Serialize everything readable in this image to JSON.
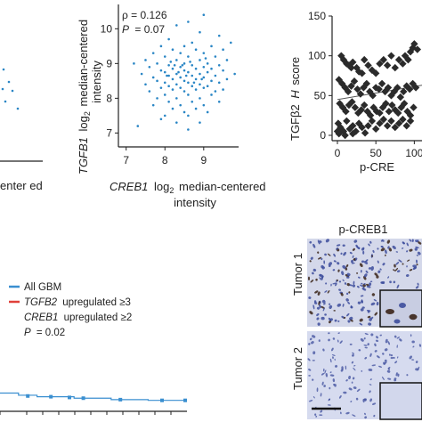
{
  "colors": {
    "point_blue": "#2a86c5",
    "km_blue": "#3a8fd0",
    "km_red": "#e0403a",
    "diamond": "#2b2b2b",
    "ihc_bg": "#cfd5ea",
    "ihc_nuclei": "#3d4e9c"
  },
  "left_panel": {
    "xlabel_tail": "enter ed"
  },
  "chart_data": [
    {
      "type": "scatter",
      "panel": "scatter-creb1-tgfb1",
      "x_label_gene": "CREB1",
      "x_label_suffix": "log",
      "x_label_sub": "2",
      "x_label_rest": "median-centered",
      "x_label_line2": "intensity",
      "y_label_gene": "TGFB1",
      "y_label_suffix": "log",
      "y_label_sub": "2",
      "y_label_rest": "median-centered",
      "y_label_line2": "intensity",
      "x_ticks": [
        "7",
        "8",
        "9"
      ],
      "y_ticks": [
        "7",
        "8",
        "9",
        "10"
      ],
      "xlim": [
        6.8,
        9.9
      ],
      "ylim": [
        6.6,
        10.7
      ],
      "rho_label": "ρ = 0.126",
      "p_label_letter": "P",
      "p_label_value": "= 0.07",
      "points": [
        [
          8.6,
          10.2
        ],
        [
          9.0,
          10.4
        ],
        [
          8.3,
          10.1
        ],
        [
          8.9,
          9.9
        ],
        [
          9.4,
          9.8
        ],
        [
          8.1,
          9.7
        ],
        [
          8.7,
          9.6
        ],
        [
          7.9,
          9.5
        ],
        [
          8.5,
          9.5
        ],
        [
          9.2,
          9.5
        ],
        [
          8.2,
          9.4
        ],
        [
          8.8,
          9.4
        ],
        [
          9.5,
          9.4
        ],
        [
          7.7,
          9.3
        ],
        [
          8.4,
          9.3
        ],
        [
          9.0,
          9.3
        ],
        [
          8.0,
          9.2
        ],
        [
          8.6,
          9.2
        ],
        [
          9.3,
          9.2
        ],
        [
          7.5,
          9.1
        ],
        [
          8.3,
          9.1
        ],
        [
          8.9,
          9.1
        ],
        [
          9.6,
          9.1
        ],
        [
          7.8,
          9.0
        ],
        [
          8.5,
          9.0
        ],
        [
          9.1,
          9.0
        ],
        [
          8.1,
          8.95
        ],
        [
          8.7,
          8.95
        ],
        [
          9.4,
          8.95
        ],
        [
          7.6,
          8.9
        ],
        [
          8.4,
          8.9
        ],
        [
          9.0,
          8.9
        ],
        [
          8.2,
          8.85
        ],
        [
          8.8,
          8.85
        ],
        [
          9.2,
          8.85
        ],
        [
          7.9,
          8.8
        ],
        [
          8.5,
          8.8
        ],
        [
          9.5,
          8.8
        ],
        [
          8.0,
          8.75
        ],
        [
          8.6,
          8.75
        ],
        [
          9.1,
          8.75
        ],
        [
          7.4,
          8.7
        ],
        [
          8.3,
          8.7
        ],
        [
          8.9,
          8.7
        ],
        [
          8.1,
          8.65
        ],
        [
          8.7,
          8.65
        ],
        [
          9.3,
          8.65
        ],
        [
          7.7,
          8.6
        ],
        [
          8.4,
          8.6
        ],
        [
          9.0,
          8.6
        ],
        [
          8.2,
          8.55
        ],
        [
          8.8,
          8.55
        ],
        [
          9.6,
          8.55
        ],
        [
          7.8,
          8.5
        ],
        [
          8.5,
          8.5
        ],
        [
          9.2,
          8.5
        ],
        [
          8.0,
          8.45
        ],
        [
          8.6,
          8.45
        ],
        [
          9.4,
          8.45
        ],
        [
          7.5,
          8.4
        ],
        [
          8.3,
          8.4
        ],
        [
          8.9,
          8.4
        ],
        [
          8.1,
          8.35
        ],
        [
          8.7,
          8.35
        ],
        [
          9.1,
          8.35
        ],
        [
          7.9,
          8.3
        ],
        [
          8.4,
          8.3
        ],
        [
          9.0,
          8.3
        ],
        [
          8.2,
          8.25
        ],
        [
          8.8,
          8.25
        ],
        [
          9.5,
          8.25
        ],
        [
          7.6,
          8.2
        ],
        [
          8.5,
          8.2
        ],
        [
          9.3,
          8.2
        ],
        [
          8.0,
          8.1
        ],
        [
          8.6,
          8.1
        ],
        [
          9.2,
          8.1
        ],
        [
          7.8,
          8.0
        ],
        [
          8.3,
          8.0
        ],
        [
          8.9,
          8.0
        ],
        [
          8.1,
          7.9
        ],
        [
          8.7,
          7.9
        ],
        [
          9.4,
          7.9
        ],
        [
          7.7,
          7.8
        ],
        [
          8.4,
          7.8
        ],
        [
          9.0,
          7.8
        ],
        [
          8.2,
          7.7
        ],
        [
          8.8,
          7.7
        ],
        [
          8.5,
          7.6
        ],
        [
          9.1,
          7.6
        ],
        [
          8.0,
          7.5
        ],
        [
          8.6,
          7.5
        ],
        [
          7.9,
          7.4
        ],
        [
          8.3,
          7.3
        ],
        [
          8.9,
          7.3
        ],
        [
          8.6,
          7.1
        ],
        [
          7.3,
          7.2
        ],
        [
          9.7,
          9.6
        ],
        [
          7.2,
          9.0
        ],
        [
          9.8,
          8.7
        ],
        [
          8.45,
          8.95
        ],
        [
          8.55,
          8.65
        ],
        [
          8.65,
          9.05
        ],
        [
          8.35,
          8.75
        ],
        [
          8.75,
          8.45
        ],
        [
          8.25,
          8.95
        ],
        [
          8.95,
          8.55
        ],
        [
          8.05,
          8.65
        ],
        [
          9.05,
          9.15
        ],
        [
          8.15,
          9.05
        ]
      ]
    },
    {
      "type": "scatter",
      "panel": "scatter-hscore",
      "y_label_gene": "TGFβ2",
      "y_label_italic": "H",
      "y_label_rest": "score",
      "x_label_visible": "p-CRE",
      "x_ticks": [
        "0",
        "50",
        "100"
      ],
      "y_ticks": [
        "0",
        "50",
        "100",
        "150"
      ],
      "xlim": [
        0,
        110
      ],
      "ylim": [
        0,
        150
      ],
      "points": [
        [
          5,
          100
        ],
        [
          8,
          95
        ],
        [
          12,
          90
        ],
        [
          15,
          88
        ],
        [
          18,
          85
        ],
        [
          20,
          92
        ],
        [
          25,
          85
        ],
        [
          28,
          80
        ],
        [
          32,
          78
        ],
        [
          35,
          95
        ],
        [
          40,
          88
        ],
        [
          45,
          82
        ],
        [
          50,
          78
        ],
        [
          55,
          90
        ],
        [
          60,
          95
        ],
        [
          65,
          88
        ],
        [
          70,
          100
        ],
        [
          75,
          85
        ],
        [
          80,
          95
        ],
        [
          85,
          90
        ],
        [
          88,
          100
        ],
        [
          92,
          95
        ],
        [
          95,
          105
        ],
        [
          98,
          110
        ],
        [
          100,
          115
        ],
        [
          104,
          108
        ],
        [
          2,
          70
        ],
        [
          6,
          65
        ],
        [
          10,
          60
        ],
        [
          14,
          55
        ],
        [
          18,
          62
        ],
        [
          22,
          68
        ],
        [
          26,
          58
        ],
        [
          30,
          52
        ],
        [
          34,
          60
        ],
        [
          38,
          65
        ],
        [
          42,
          55
        ],
        [
          46,
          50
        ],
        [
          50,
          60
        ],
        [
          54,
          58
        ],
        [
          58,
          65
        ],
        [
          62,
          55
        ],
        [
          66,
          60
        ],
        [
          70,
          50
        ],
        [
          74,
          55
        ],
        [
          78,
          60
        ],
        [
          82,
          48
        ],
        [
          86,
          55
        ],
        [
          90,
          62
        ],
        [
          94,
          58
        ],
        [
          98,
          65
        ],
        [
          102,
          60
        ],
        [
          3,
          40
        ],
        [
          7,
          35
        ],
        [
          11,
          30
        ],
        [
          15,
          38
        ],
        [
          19,
          42
        ],
        [
          23,
          35
        ],
        [
          27,
          28
        ],
        [
          31,
          32
        ],
        [
          35,
          38
        ],
        [
          39,
          30
        ],
        [
          43,
          25
        ],
        [
          47,
          35
        ],
        [
          51,
          30
        ],
        [
          55,
          28
        ],
        [
          59,
          35
        ],
        [
          63,
          40
        ],
        [
          67,
          30
        ],
        [
          71,
          38
        ],
        [
          75,
          32
        ],
        [
          79,
          28
        ],
        [
          83,
          35
        ],
        [
          87,
          40
        ],
        [
          91,
          30
        ],
        [
          95,
          25
        ],
        [
          99,
          35
        ],
        [
          1,
          15
        ],
        [
          4,
          10
        ],
        [
          8,
          5
        ],
        [
          12,
          18
        ],
        [
          16,
          8
        ],
        [
          20,
          12
        ],
        [
          24,
          5
        ],
        [
          28,
          15
        ],
        [
          32,
          10
        ],
        [
          36,
          3
        ],
        [
          40,
          12
        ],
        [
          45,
          18
        ],
        [
          50,
          8
        ],
        [
          55,
          15
        ],
        [
          60,
          20
        ],
        [
          65,
          12
        ],
        [
          70,
          18
        ],
        [
          75,
          10
        ],
        [
          80,
          15
        ],
        [
          85,
          20
        ],
        [
          90,
          12
        ],
        [
          95,
          18
        ],
        [
          2,
          2
        ],
        [
          10,
          0
        ],
        [
          20,
          2
        ],
        [
          0,
          5
        ]
      ],
      "trend": [
        [
          0,
          45
        ],
        [
          110,
          63
        ]
      ]
    },
    {
      "type": "line",
      "panel": "survival",
      "legend": [
        {
          "label": "All GBM",
          "color": "km_blue"
        },
        {
          "label_italic": "TGFB2",
          "label_rest": "upregulated ≥3",
          "color": "km_red"
        }
      ],
      "legend_line3_italic": "CREB1",
      "legend_line3_rest": "upregulated ≥2",
      "p_letter": "P",
      "p_value": "= 0.02",
      "series": [
        {
          "color": "km_blue",
          "steps": [
            [
              0,
              0.25
            ],
            [
              20,
              0.22
            ],
            [
              40,
              0.2
            ],
            [
              80,
              0.18
            ],
            [
              120,
              0.16
            ],
            [
              160,
              0.15
            ],
            [
              200,
              0.15
            ]
          ]
        }
      ]
    }
  ],
  "ihc": {
    "column_title": "p-CREB1",
    "row1_label": "Tumor 1",
    "row2_label": "Tumor 2"
  }
}
